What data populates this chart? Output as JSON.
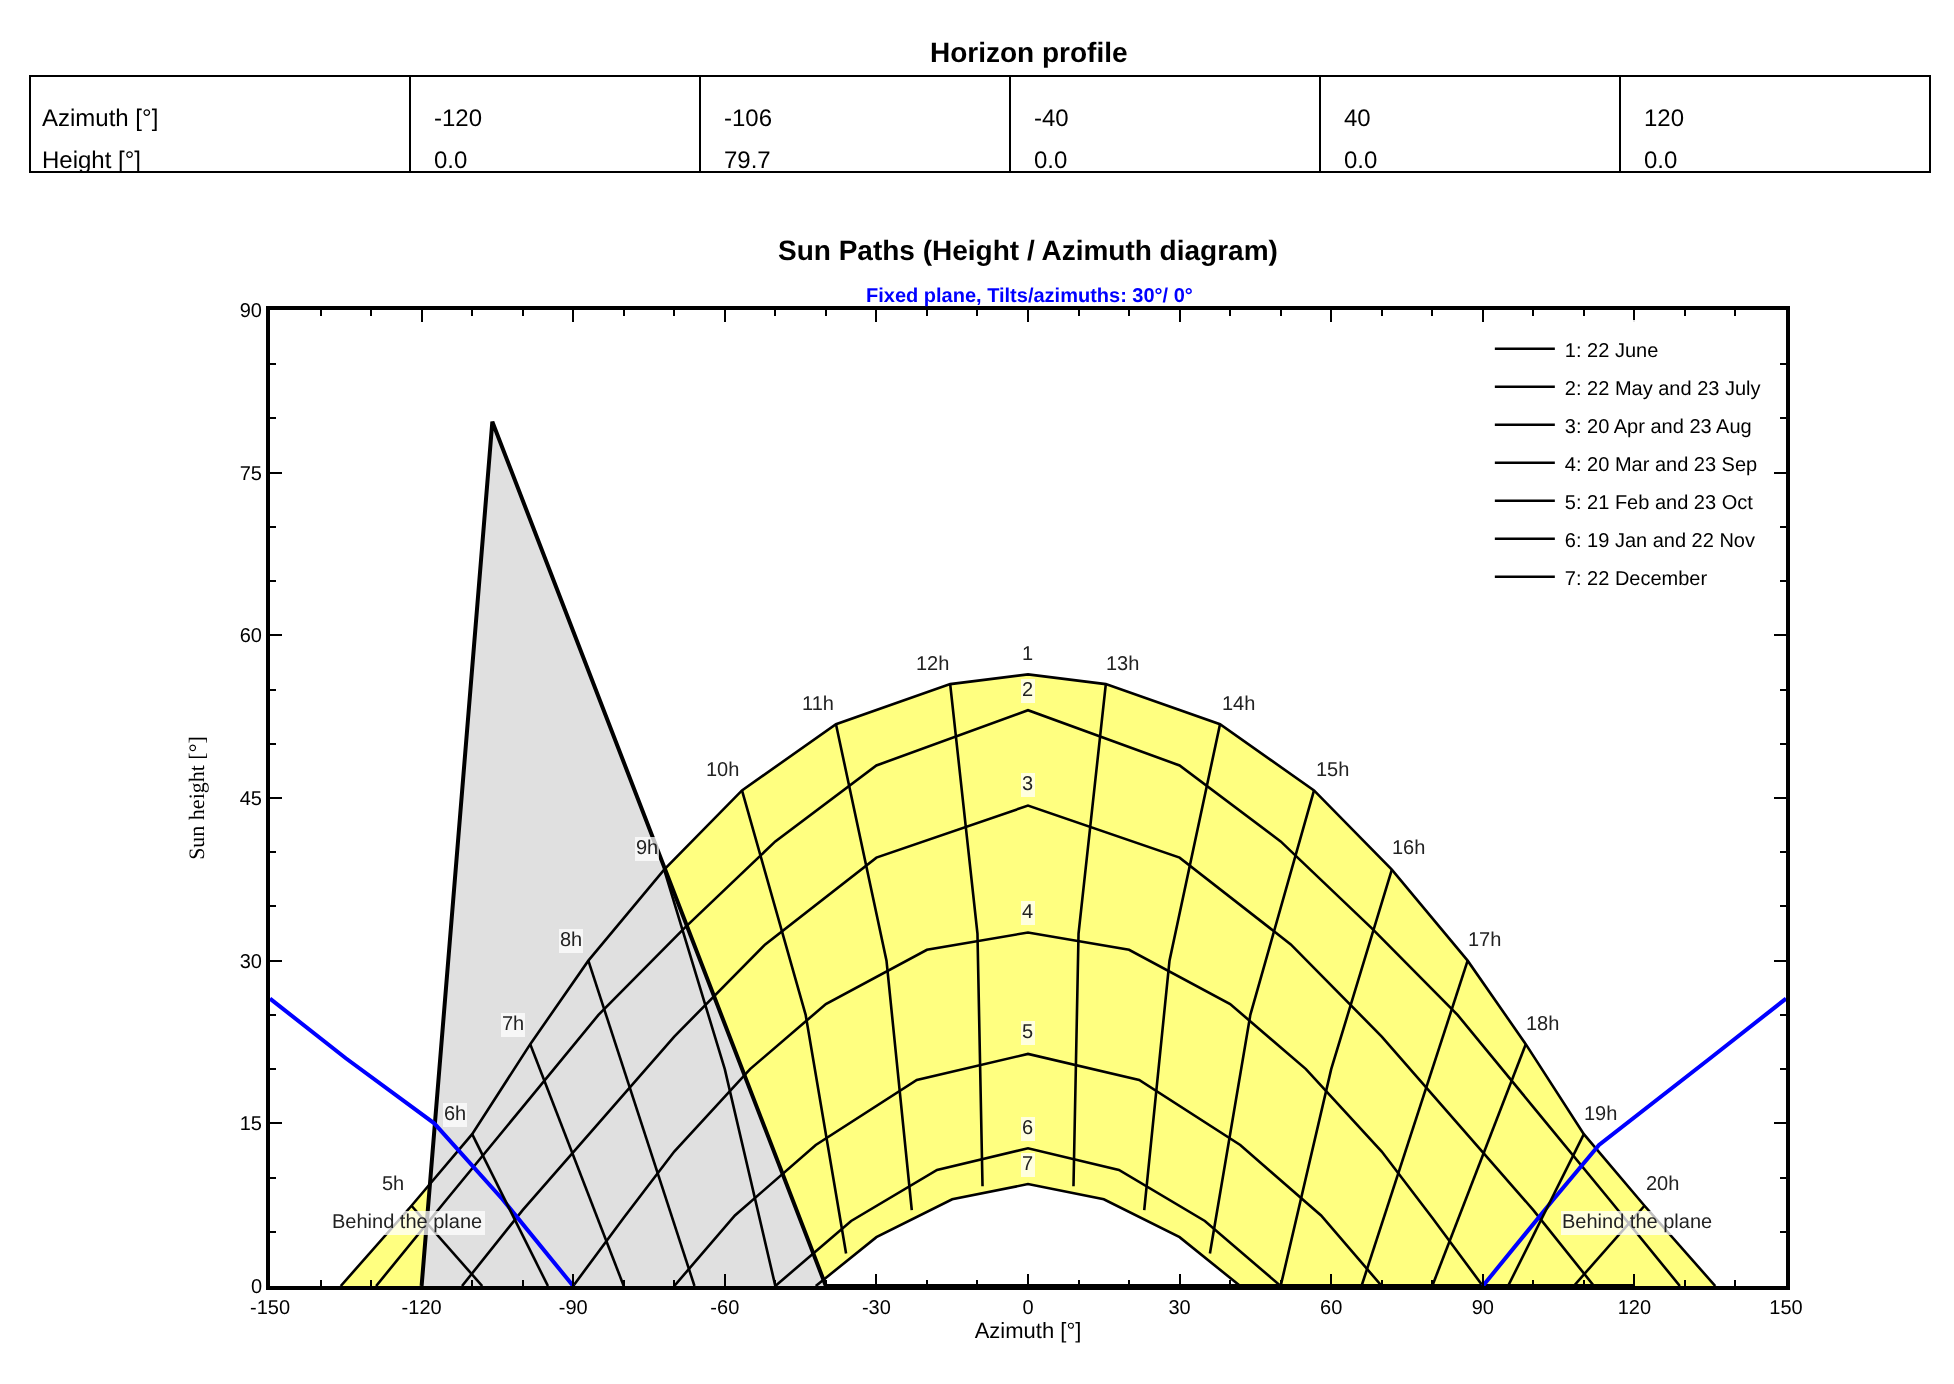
{
  "chart_data": {
    "type": "line",
    "title": "Sun Paths (Height / Azimuth diagram)",
    "subtitle": "Fixed plane, Tilts/azimuths: 30°/ 0°",
    "xlabel": "Azimuth [°]",
    "ylabel": "Sun height [°]",
    "xlim": [
      -150,
      150
    ],
    "xticks": [
      -150,
      -120,
      -90,
      -60,
      -30,
      0,
      30,
      60,
      90,
      120,
      150
    ],
    "ylim": [
      0,
      90
    ],
    "yticks": [
      0,
      15,
      30,
      45,
      60,
      75,
      90
    ],
    "grid": false,
    "legend": "top right",
    "marker": "none",
    "line_style": "solid",
    "series": [
      {
        "name": "1: 22 June",
        "color": "#000000",
        "x": [
          -136,
          -122,
          -110,
          -98.5,
          -87,
          -72,
          -56.6,
          -38,
          -15.4,
          0,
          15.4,
          38,
          56.6,
          72,
          87,
          98.5,
          110,
          122,
          136
        ],
        "values": [
          0,
          7.4,
          14,
          22.3,
          30,
          38.4,
          45.7,
          51.8,
          55.5,
          56.4,
          55.5,
          51.8,
          45.7,
          38.4,
          30,
          22.3,
          14,
          7.4,
          0
        ]
      },
      {
        "name": "2: 22 May and 23 July",
        "color": "#000000",
        "x": [
          -129,
          -115,
          -100,
          -85,
          -68,
          -50,
          -30,
          0,
          30,
          50,
          68,
          85,
          100,
          115,
          129
        ],
        "values": [
          0,
          8,
          16.5,
          25,
          33,
          41,
          48,
          53.1,
          48,
          41,
          33,
          25,
          16.5,
          8,
          0
        ]
      },
      {
        "name": "3: 20 Apr and 23 Aug",
        "color": "#000000",
        "x": [
          -112,
          -100,
          -85,
          -70,
          -52,
          -30,
          0,
          30,
          52,
          70,
          85,
          100,
          112
        ],
        "values": [
          0,
          7,
          15,
          23,
          31.5,
          39.5,
          44.3,
          39.5,
          31.5,
          23,
          15,
          7,
          0
        ]
      },
      {
        "name": "4: 20 Mar and 23 Sep",
        "color": "#000000",
        "x": [
          -90,
          -80,
          -70,
          -55,
          -40,
          -20,
          0,
          20,
          40,
          55,
          70,
          80,
          90
        ],
        "values": [
          0,
          6.3,
          12.4,
          20,
          26,
          31,
          32.6,
          31,
          26,
          20,
          12.4,
          6.3,
          0
        ]
      },
      {
        "name": "5: 21 Feb and 23 Oct",
        "color": "#000000",
        "x": [
          -70,
          -58,
          -42,
          -22,
          0,
          22,
          42,
          58,
          70
        ],
        "values": [
          0,
          6.5,
          13,
          19,
          21.4,
          19,
          13,
          6.5,
          0
        ]
      },
      {
        "name": "6: 19 Jan and 22 Nov",
        "color": "#000000",
        "x": [
          -50,
          -35,
          -18,
          0,
          18,
          35,
          50
        ],
        "values": [
          0,
          6,
          10.7,
          12.7,
          10.7,
          6,
          0
        ]
      },
      {
        "name": "7: 22 December",
        "color": "#000000",
        "x": [
          -42,
          -30,
          -15,
          0,
          15,
          30,
          42
        ],
        "values": [
          0,
          4.5,
          8,
          9.4,
          8,
          4.5,
          0
        ]
      },
      {
        "type": "area",
        "color": "#000000",
        "x": [
          -120,
          -106,
          -40,
          40,
          120
        ],
        "values": [
          0,
          79.7,
          0,
          0,
          0
        ]
      },
      {
        "color": "#0000ff",
        "x": [
          -150,
          -135,
          -117.5,
          -104,
          -90
        ],
        "values": [
          26.5,
          21,
          15,
          8,
          0
        ]
      },
      {
        "color": "#0000ff",
        "x": [
          90,
          104,
          113,
          135,
          150
        ],
        "values": [
          0,
          8,
          13,
          21,
          26.5
        ]
      },
      {
        "color": "#000000",
        "x": [
          -122,
          -108
        ],
        "values": [
          7.4,
          0
        ]
      },
      {
        "color": "#000000",
        "x": [
          -110,
          -95
        ],
        "values": [
          14,
          0
        ]
      },
      {
        "color": "#000000",
        "x": [
          -98.5,
          -80
        ],
        "values": [
          22.3,
          0
        ]
      },
      {
        "color": "#000000",
        "x": [
          -87,
          -66
        ],
        "values": [
          30,
          0
        ]
      },
      {
        "color": "#000000",
        "x": [
          -72,
          -60,
          -50
        ],
        "values": [
          38.4,
          20,
          0
        ]
      },
      {
        "color": "#000000",
        "x": [
          -56.6,
          -44,
          -36
        ],
        "values": [
          45.7,
          25,
          3
        ]
      },
      {
        "color": "#000000",
        "x": [
          -38,
          -28,
          -23
        ],
        "values": [
          51.8,
          30,
          7
        ]
      },
      {
        "color": "#000000",
        "x": [
          -15.4,
          -10,
          -9
        ],
        "values": [
          55.5,
          32.5,
          9.2
        ]
      },
      {
        "color": "#000000",
        "x": [
          15.4,
          10,
          9
        ],
        "values": [
          55.5,
          32.5,
          9.2
        ]
      },
      {
        "color": "#000000",
        "x": [
          38,
          28,
          23
        ],
        "values": [
          51.8,
          30,
          7
        ]
      },
      {
        "color": "#000000",
        "x": [
          56.6,
          44,
          36
        ],
        "values": [
          45.7,
          25,
          3
        ]
      },
      {
        "color": "#000000",
        "x": [
          72,
          60,
          50
        ],
        "values": [
          38.4,
          20,
          0
        ]
      },
      {
        "color": "#000000",
        "x": [
          87,
          66
        ],
        "values": [
          30,
          0
        ]
      },
      {
        "color": "#000000",
        "x": [
          98.5,
          80
        ],
        "values": [
          22.3,
          0
        ]
      },
      {
        "color": "#000000",
        "x": [
          110,
          95
        ],
        "values": [
          14,
          0
        ]
      },
      {
        "color": "#000000",
        "x": [
          122,
          108
        ],
        "values": [
          7.4,
          0
        ]
      }
    ],
    "annotations": [
      "Horizon profile",
      "Azimuth [°]",
      "Height [°]",
      "-120",
      "-106",
      "-40",
      "40",
      "120",
      "0.0",
      "79.7",
      "0.0",
      "0.0",
      "0.0",
      {
        "text": "5h",
        "x": -122,
        "y": 7.4
      },
      {
        "text": "6h",
        "x": -110,
        "y": 14
      },
      {
        "text": "7h",
        "x": -98.5,
        "y": 22.3
      },
      {
        "text": "8h",
        "x": -87,
        "y": 30
      },
      {
        "text": "9h",
        "x": -72,
        "y": 38.4
      },
      {
        "text": "10h",
        "x": -56.6,
        "y": 45.7
      },
      {
        "text": "11h",
        "x": -38,
        "y": 51.8
      },
      {
        "text": "12h",
        "x": -15.4,
        "y": 55.5
      },
      {
        "text": "13h",
        "x": 15.4,
        "y": 55.5
      },
      {
        "text": "14h",
        "x": 38,
        "y": 51.8
      },
      {
        "text": "15h",
        "x": 56.6,
        "y": 45.7
      },
      {
        "text": "16h",
        "x": 72,
        "y": 38.4
      },
      {
        "text": "17h",
        "x": 87,
        "y": 30
      },
      {
        "text": "18h",
        "x": 98.5,
        "y": 22.3
      },
      {
        "text": "19h",
        "x": 110,
        "y": 14
      },
      {
        "text": "20h",
        "x": 122,
        "y": 7.4
      },
      {
        "text": "1",
        "x": 0,
        "y": 56.4
      },
      {
        "text": "2",
        "x": 0,
        "y": 53.1
      },
      {
        "text": "3",
        "x": 0,
        "y": 44.3
      },
      {
        "text": "4",
        "x": 0,
        "y": 32.6
      },
      {
        "text": "5",
        "x": 0,
        "y": 21.4
      },
      {
        "text": "6",
        "x": 0,
        "y": 12.7
      },
      {
        "text": "7",
        "x": 0,
        "y": 9.4
      },
      {
        "text": "Behind the plane",
        "x": -119,
        "y": 4
      },
      {
        "text": "Behind the plane",
        "x": 117,
        "y": 4
      }
    ]
  }
}
